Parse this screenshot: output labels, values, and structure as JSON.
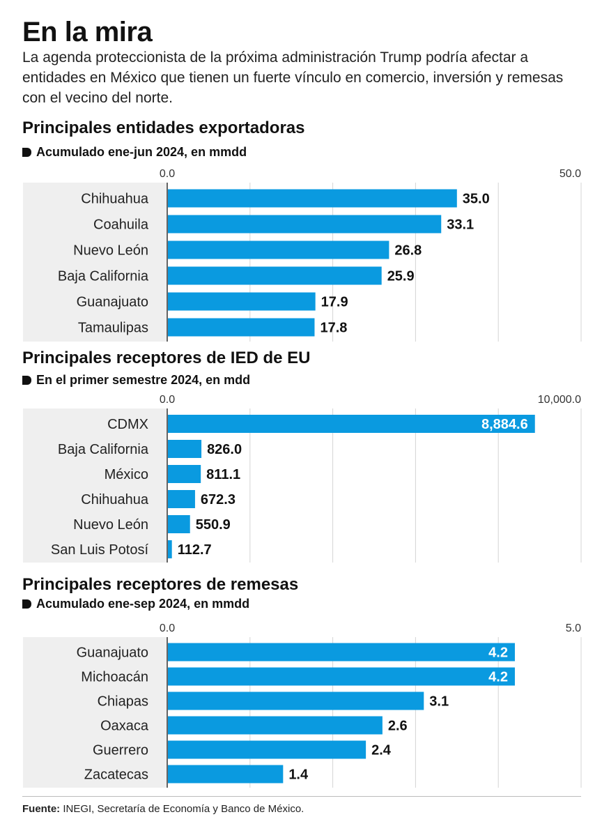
{
  "header": {
    "title": "En la mira",
    "subtitle": "La agenda proteccionista de la próxima administración Trump podría afectar a entidades en México que tienen un fuerte vínculo en comercio, inversión y remesas con el vecino del norte."
  },
  "chart_data": [
    {
      "type": "bar",
      "title": "Principales entidades exportadoras",
      "subtitle": "Acumulado ene-jun 2024, en mmdd",
      "categories": [
        "Chihuahua",
        "Coahuila",
        "Nuevo León",
        "Baja California",
        "Guanajuato",
        "Tamaulipas"
      ],
      "values": [
        35.0,
        33.1,
        26.8,
        25.9,
        17.9,
        17.8
      ],
      "labels": [
        "35.0",
        "33.1",
        "26.8",
        "25.9",
        "17.9",
        "17.8"
      ],
      "xlim": [
        0,
        50
      ],
      "tick_labels": [
        "0.0",
        "50.0"
      ],
      "bar_color": "#0a9ae0",
      "grid": true
    },
    {
      "type": "bar",
      "title": "Principales receptores de IED de EU",
      "subtitle": "En el primer semestre 2024, en mdd",
      "categories": [
        "CDMX",
        "Baja California",
        "México",
        "Chihuahua",
        "Nuevo León",
        "San Luis Potosí"
      ],
      "values": [
        8884.6,
        826.0,
        811.1,
        672.3,
        550.9,
        112.7
      ],
      "labels": [
        "8,884.6",
        "826.0",
        "811.1",
        "672.3",
        "550.9",
        "112.7"
      ],
      "xlim": [
        0,
        10000
      ],
      "tick_labels": [
        "0.0",
        "10,000.0"
      ],
      "bar_color": "#0a9ae0",
      "grid": true
    },
    {
      "type": "bar",
      "title": "Principales receptores de remesas",
      "subtitle": "Acumulado ene-sep 2024, en mmdd",
      "categories": [
        "Guanajuato",
        "Michoacán",
        "Chiapas",
        "Oaxaca",
        "Guerrero",
        "Zacatecas"
      ],
      "values": [
        4.2,
        4.2,
        3.1,
        2.6,
        2.4,
        1.4
      ],
      "labels": [
        "4.2",
        "4.2",
        "3.1",
        "2.6",
        "2.4",
        "1.4"
      ],
      "xlim": [
        0,
        5
      ],
      "tick_labels": [
        "0.0",
        "5.0"
      ],
      "bar_color": "#0a9ae0",
      "grid": true
    }
  ],
  "footer": {
    "source_label": "Fuente:",
    "source_text": " INEGI, Secretaría de Economía y Banco de México."
  }
}
